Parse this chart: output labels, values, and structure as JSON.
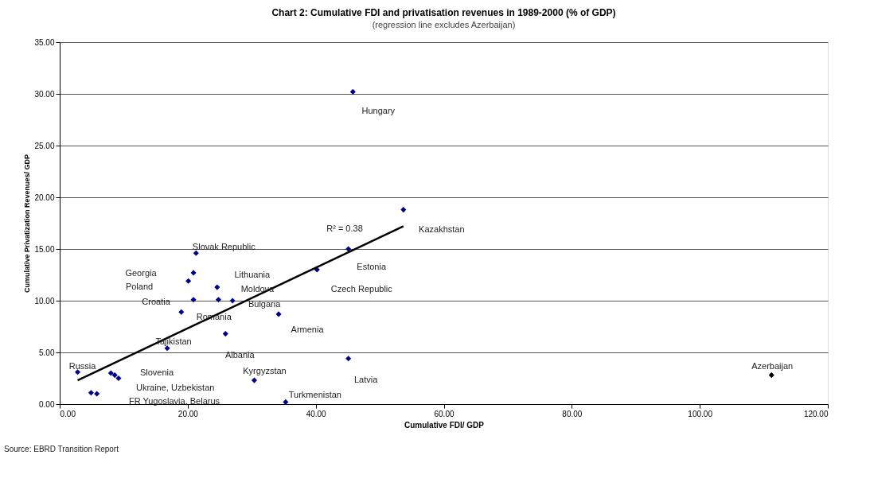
{
  "chart_data": {
    "type": "scatter",
    "title": "Chart 2: Cumulative FDI and privatisation revenues in 1989-2000 (% of GDP)",
    "subtitle": "(regression line excludes Azerbaijan)",
    "xlabel": "Cumulative FDI/ GDP",
    "ylabel": "Cumulative Privatization Revenues/ GDP",
    "series": [
      {
        "color": "#00008b",
        "marker": "diamond",
        "x": [
          45.8,
          53.7,
          45.1,
          40.2,
          21.3,
          20.9,
          20.1,
          20.9,
          24.6,
          24.8,
          27.0,
          19.0,
          34.2,
          25.9,
          16.8,
          45.1,
          2.8,
          8.0,
          8.6,
          9.2,
          30.4,
          4.9,
          5.8,
          35.3
        ],
        "values": [
          30.2,
          18.8,
          15.0,
          13.0,
          14.6,
          12.7,
          11.9,
          10.1,
          11.3,
          10.1,
          10.0,
          8.9,
          8.7,
          6.8,
          5.4,
          4.4,
          3.1,
          3.0,
          2.8,
          2.5,
          2.3,
          1.1,
          1.0,
          0.2
        ]
      },
      {
        "color": "#000000",
        "marker": "diamond",
        "x": [
          111.2
        ],
        "values": [
          2.8
        ]
      },
      {
        "type": "line",
        "color": "#000000",
        "marker": "none",
        "line_style": "solid",
        "x": [
          2.8,
          53.7
        ],
        "values": [
          2.3,
          17.2
        ]
      }
    ],
    "xlim": [
      0,
      120
    ],
    "ylim": [
      0,
      35
    ],
    "xticks": [
      {
        "value": 0,
        "label": "0.00"
      },
      {
        "value": 20,
        "label": "20.00"
      },
      {
        "value": 40,
        "label": "40.00"
      },
      {
        "value": 60,
        "label": "60.00"
      },
      {
        "value": 80,
        "label": "80.00"
      },
      {
        "value": 100,
        "label": "100.00"
      },
      {
        "value": 120,
        "label": "120.00"
      }
    ],
    "yticks": [
      {
        "value": 0,
        "label": "0.00"
      },
      {
        "value": 5,
        "label": "5.00"
      },
      {
        "value": 10,
        "label": "10.00"
      },
      {
        "value": 15,
        "label": "15.00"
      },
      {
        "value": 20,
        "label": "20.00"
      },
      {
        "value": 25,
        "label": "25.00"
      },
      {
        "value": 30,
        "label": "30.00"
      },
      {
        "value": 35,
        "label": "35.00"
      }
    ],
    "grid": "y",
    "annotations": [
      {
        "text": "Hungary",
        "x": 45.8,
        "y": 30.2
      },
      {
        "text": "Kazakhstan",
        "x": 53.7,
        "y": 18.8
      },
      {
        "text": "Estonia",
        "x": 45.1,
        "y": 15.0
      },
      {
        "text": "Czech Republic",
        "x": 40.2,
        "y": 13.0
      },
      {
        "text": "Slovak Republic",
        "x": 21.3,
        "y": 14.6
      },
      "Georgia",
      "Poland",
      {
        "text": "Croatia",
        "x": 20.9,
        "y": 10.1
      },
      {
        "text": "Lithuania",
        "x": 24.6,
        "y": 11.3
      },
      {
        "text": "Moldova",
        "x": 24.8,
        "y": 10.1
      },
      {
        "text": "Bulgaria",
        "x": 27.0,
        "y": 10.0
      },
      {
        "text": "Romania",
        "x": 19.0,
        "y": 8.9
      },
      {
        "text": "Armenia",
        "x": 34.2,
        "y": 8.7
      },
      {
        "text": "Albania",
        "x": 25.9,
        "y": 6.8
      },
      {
        "text": "Tajikistan",
        "x": 16.8,
        "y": 5.4
      },
      {
        "text": "Latvia",
        "x": 45.1,
        "y": 4.4
      },
      {
        "text": "Russia",
        "x": 2.8,
        "y": 3.1
      },
      "Slovenia",
      {
        "text": "Ukraine, Uzbekistan",
        "x": 8.6,
        "y": 2.8
      },
      {
        "text": "Kyrgyzstan",
        "x": 30.4,
        "y": 2.3
      },
      "FR Yugoslavia, Belarus",
      {
        "text": "Turkmenistan",
        "x": 35.3,
        "y": 0.2
      },
      {
        "text": "Azerbaijan",
        "x": 111.2,
        "y": 2.8
      },
      "R² = 0.38",
      "Source: EBRD Transition Report"
    ]
  }
}
